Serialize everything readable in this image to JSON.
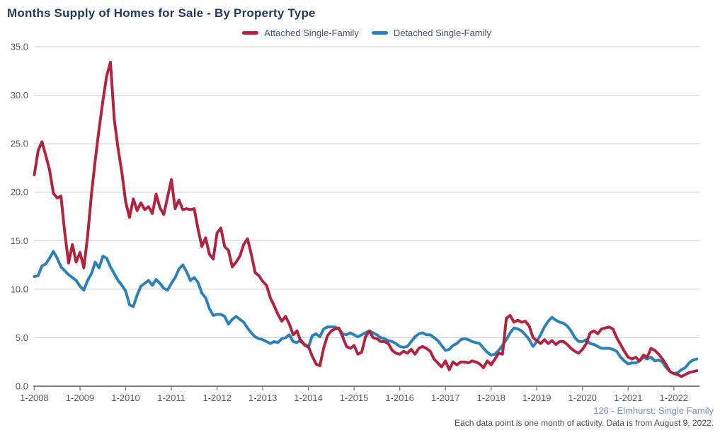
{
  "title": "Months Supply of Homes for Sale - By Property Type",
  "legend": [
    {
      "label": "Attached Single-Family",
      "color": "#b02440"
    },
    {
      "label": "Detached Single-Family",
      "color": "#2e81b8"
    }
  ],
  "footer": {
    "source_line": "126 - Elmhurst: Single Family",
    "note_line": "Each data point is one month of activity. Data is from August 9, 2022."
  },
  "colors": {
    "title": "#1e3a5f",
    "legend_text": "#44536b",
    "grid": "#cccccc",
    "axis_line": "#808080",
    "axis_text": "#595959",
    "footer_source": "#7191b5",
    "footer_note": "#4a4a4a"
  },
  "chart_data": {
    "type": "line",
    "title": "Months Supply of Homes for Sale - By Property Type",
    "x_start": "1-2008",
    "x_frequency": "monthly",
    "x_tick_labels": [
      "1-2008",
      "1-2009",
      "1-2010",
      "1-2011",
      "1-2012",
      "1-2013",
      "1-2014",
      "1-2015",
      "1-2016",
      "1-2017",
      "1-2018",
      "1-2019",
      "1-2020",
      "1-2021",
      "1-2022"
    ],
    "y_ticks": [
      0,
      5,
      10,
      15,
      20,
      25,
      30,
      35
    ],
    "ylim": [
      0,
      35
    ],
    "grid": "horizontal",
    "legend_position": "top-center",
    "series": [
      {
        "name": "Attached Single-Family",
        "color": "#b02440",
        "values": [
          21.8,
          24.3,
          25.2,
          23.8,
          22.3,
          19.9,
          19.4,
          19.6,
          15.8,
          12.7,
          14.6,
          12.8,
          13.8,
          12.2,
          15.5,
          19.8,
          23.3,
          26.5,
          29.4,
          32.0,
          33.4,
          27.5,
          24.5,
          22.0,
          19.0,
          17.4,
          19.3,
          18.1,
          18.9,
          18.2,
          18.5,
          17.8,
          19.8,
          18.4,
          17.7,
          19.5,
          21.3,
          18.3,
          19.2,
          18.2,
          18.3,
          18.2,
          18.3,
          16.2,
          14.4,
          15.3,
          13.6,
          13.1,
          15.8,
          16.3,
          14.4,
          14.0,
          12.3,
          12.8,
          13.4,
          14.6,
          15.2,
          13.6,
          11.7,
          11.4,
          10.8,
          10.4,
          9.1,
          8.3,
          7.4,
          6.7,
          7.2,
          6.4,
          5.3,
          5.7,
          4.6,
          4.3,
          4.1,
          3.1,
          2.3,
          2.1,
          3.9,
          5.2,
          5.7,
          5.9,
          6.0,
          5.1,
          4.1,
          3.9,
          4.2,
          3.3,
          3.5,
          5.1,
          5.7,
          5.0,
          4.9,
          4.6,
          4.6,
          4.4,
          3.7,
          3.4,
          3.3,
          3.6,
          3.4,
          3.8,
          3.3,
          3.9,
          4.1,
          3.9,
          3.6,
          2.8,
          2.4,
          2.0,
          2.6,
          1.7,
          2.5,
          2.2,
          2.5,
          2.5,
          2.4,
          2.6,
          2.5,
          2.3,
          1.9,
          2.6,
          2.2,
          2.8,
          3.4,
          3.3,
          7.0,
          7.3,
          6.6,
          6.8,
          6.6,
          6.7,
          6.2,
          5.0,
          4.7,
          4.4,
          4.8,
          4.4,
          4.7,
          4.3,
          4.6,
          4.6,
          4.3,
          3.9,
          3.6,
          3.4,
          3.8,
          4.4,
          5.5,
          5.7,
          5.4,
          5.9,
          6.0,
          6.1,
          5.9,
          5.0,
          4.3,
          3.6,
          3.0,
          2.8,
          3.0,
          2.6,
          3.2,
          3.0,
          3.9,
          3.7,
          3.3,
          2.8,
          2.2,
          1.5,
          1.3,
          1.2,
          1.0,
          1.2,
          1.4,
          1.5,
          1.6
        ]
      },
      {
        "name": "Detached Single-Family",
        "color": "#2e81b8",
        "values": [
          11.3,
          11.4,
          12.4,
          12.6,
          13.2,
          13.9,
          13.2,
          12.3,
          11.9,
          11.5,
          11.2,
          10.9,
          10.3,
          9.9,
          10.9,
          11.6,
          12.8,
          12.2,
          13.4,
          13.2,
          12.3,
          11.6,
          10.9,
          10.4,
          9.8,
          8.4,
          8.2,
          9.4,
          10.3,
          10.6,
          10.9,
          10.4,
          11.0,
          10.6,
          10.1,
          9.9,
          10.6,
          11.2,
          12.1,
          12.5,
          11.8,
          10.9,
          11.2,
          10.7,
          9.6,
          9.1,
          8.0,
          7.3,
          7.4,
          7.4,
          7.2,
          6.4,
          6.9,
          7.2,
          6.9,
          6.6,
          6.0,
          5.5,
          5.1,
          4.9,
          4.8,
          4.6,
          4.4,
          4.6,
          4.5,
          4.9,
          5.0,
          5.3,
          4.6,
          4.5,
          4.8,
          4.2,
          4.0,
          5.2,
          5.4,
          5.1,
          5.9,
          6.1,
          6.1,
          6.1,
          5.9,
          5.4,
          5.3,
          5.5,
          5.3,
          5.1,
          5.3,
          5.5,
          5.7,
          5.5,
          5.3,
          5.0,
          4.9,
          4.7,
          4.6,
          4.4,
          4.1,
          4.0,
          4.1,
          4.6,
          5.1,
          5.4,
          5.5,
          5.3,
          5.3,
          5.0,
          4.7,
          4.2,
          3.7,
          3.8,
          4.2,
          4.4,
          4.8,
          4.9,
          4.8,
          4.6,
          4.5,
          4.4,
          3.9,
          3.5,
          3.2,
          3.3,
          3.7,
          4.2,
          4.8,
          5.5,
          6.0,
          5.9,
          5.7,
          5.3,
          4.8,
          4.1,
          4.6,
          5.3,
          6.1,
          6.7,
          7.1,
          6.8,
          6.6,
          6.5,
          6.2,
          5.7,
          5.0,
          4.6,
          4.6,
          4.8,
          4.4,
          4.3,
          4.1,
          3.9,
          3.9,
          3.9,
          3.8,
          3.6,
          3.0,
          2.6,
          2.3,
          2.4,
          2.4,
          2.6,
          3.0,
          2.8,
          3.0,
          2.6,
          2.7,
          2.5,
          1.9,
          1.5,
          1.3,
          1.4,
          1.7,
          1.9,
          2.4,
          2.7,
          2.8
        ]
      }
    ]
  }
}
